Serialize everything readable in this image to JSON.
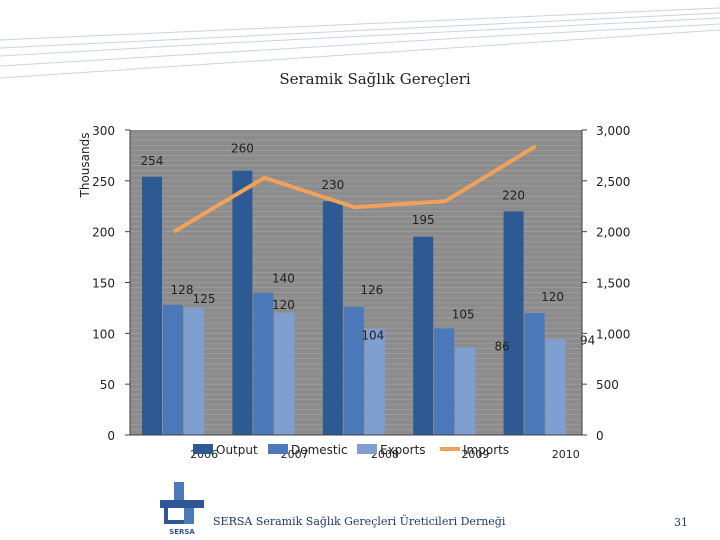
{
  "slide": {
    "title": "Seramik Sağlık Gereçleri",
    "footer": "SERSA Seramik Sağlık Gereçleri Üreticileri Derneği",
    "page_number": "31",
    "logo_text": "SERSA"
  },
  "chart_data": {
    "type": "bar",
    "title": "",
    "categories": [
      "2006",
      "2007",
      "2008",
      "2009",
      "2010"
    ],
    "y_left": {
      "label": "Thousands",
      "min": 0,
      "max": 300,
      "ticks": [
        "0",
        "50",
        "100",
        "150",
        "200",
        "250",
        "300"
      ]
    },
    "y_right": {
      "min": 0,
      "max": 3000,
      "ticks": [
        "0",
        "500",
        "1,000",
        "1,500",
        "2,000",
        "2,500",
        "3,000"
      ]
    },
    "series": [
      {
        "name": "Output",
        "type": "bar",
        "axis": "left",
        "color": "#2e5a93",
        "values": [
          254,
          260,
          230,
          195,
          220
        ],
        "labels": [
          "254",
          "260",
          "230",
          "195",
          "220"
        ]
      },
      {
        "name": "Domestic",
        "type": "bar",
        "axis": "left",
        "color": "#4a78b8",
        "values": [
          128,
          140,
          126,
          105,
          120
        ],
        "labels": [
          "128",
          "140",
          "126",
          "105",
          "120"
        ]
      },
      {
        "name": "Exports",
        "type": "bar",
        "axis": "left",
        "color": "#7f9fd0",
        "values": [
          125,
          120,
          104,
          86,
          94
        ],
        "labels": [
          "125",
          "120",
          "104",
          "86",
          "94"
        ]
      },
      {
        "name": "Imports",
        "type": "line",
        "axis": "right",
        "color": "#f0a15a",
        "values": [
          2000,
          2530,
          2240,
          2300,
          2840
        ]
      }
    ],
    "grid": true,
    "legend": "bottom"
  }
}
